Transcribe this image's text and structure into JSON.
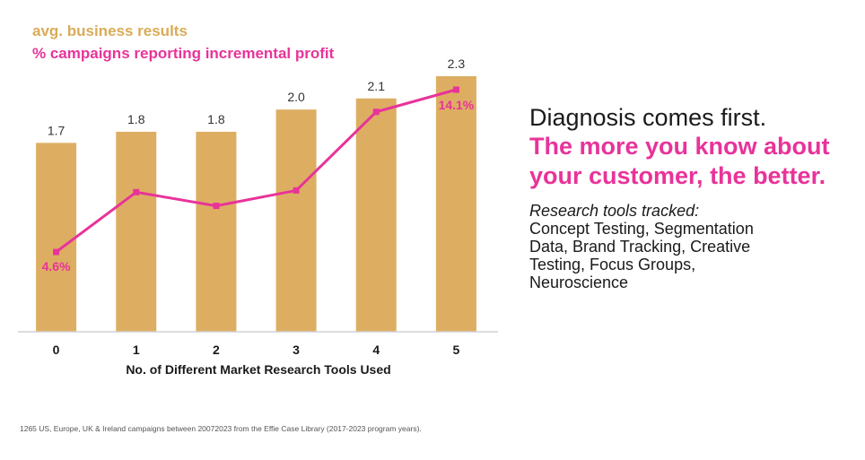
{
  "chart_data": {
    "type": "bar",
    "categories": [
      "0",
      "1",
      "2",
      "3",
      "4",
      "5"
    ],
    "series": [
      {
        "name": "avg. business results",
        "type": "bar",
        "values": [
          1.7,
          1.8,
          1.8,
          2.0,
          2.1,
          2.3
        ],
        "labels": [
          "1.7",
          "1.8",
          "1.8",
          "2.0",
          "2.1",
          "2.3"
        ],
        "color": "#ddae62"
      },
      {
        "name": "% campaigns reporting incremental profit",
        "type": "line",
        "values": [
          4.6,
          8.1,
          7.3,
          8.2,
          12.8,
          14.1
        ],
        "labels": [
          "4.6%",
          "",
          "",
          "",
          "",
          "14.1%"
        ],
        "color": "#e8339a"
      }
    ],
    "xlabel": "No. of Different Market Research Tools Used",
    "ylabel": "",
    "ylim": [
      0,
      2.3
    ],
    "grid": false,
    "legend": "top-left"
  },
  "legend": {
    "bars": "avg. business results",
    "line": "% campaigns reporting incremental profit"
  },
  "headline": {
    "line1": "Diagnosis comes first.",
    "line2": "The more you know about your customer, the better."
  },
  "tools": {
    "label": "Research tools tracked:",
    "list": "Concept Testing, Segmentation Data, Brand Tracking, Creative Testing, Focus Groups, Neuroscience"
  },
  "footnote": "1265 US, Europe, UK & Ireland campaigns between 20072023 from the Effie Case Library (2017-2023 program years).",
  "colors": {
    "bar": "#ddae62",
    "line": "#e8339a",
    "text": "#1a1a1a"
  }
}
